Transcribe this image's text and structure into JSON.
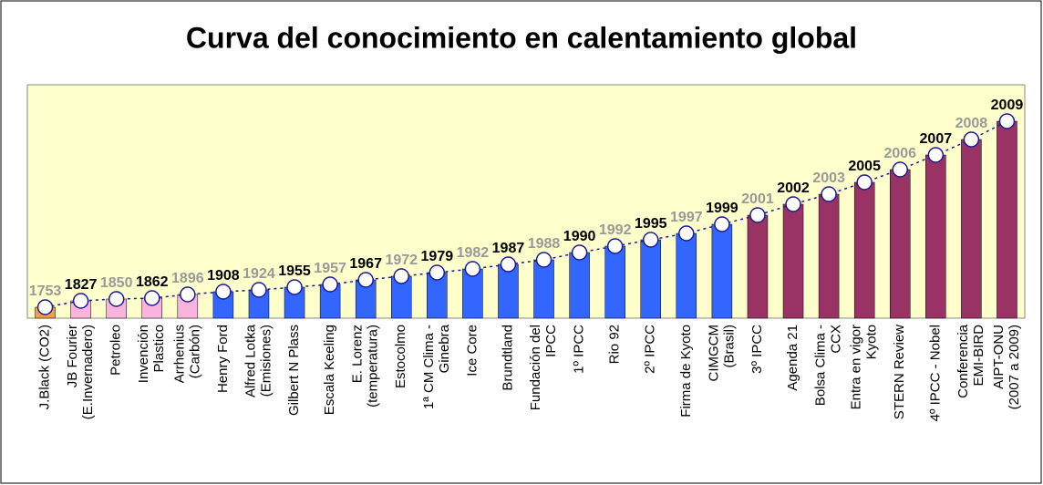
{
  "chart_data": {
    "type": "bar",
    "title": "Curva del conocimiento en calentamiento global",
    "categories": [
      [
        "J.Black (CO2)"
      ],
      [
        "JB Fourier",
        "(E.Invernadero)"
      ],
      [
        "Petroleo"
      ],
      [
        "Invención",
        "Plastico"
      ],
      [
        "Arrhenius",
        "(Carbón)"
      ],
      [
        "Henry Ford"
      ],
      [
        "Alfred Lotka",
        "(Emisiones)"
      ],
      [
        "Gilbert N Plass"
      ],
      [
        "Escala Keeling"
      ],
      [
        "E. Lorenz",
        "(temperatura)"
      ],
      [
        "Estocolmo"
      ],
      [
        "1ª CM Clima -",
        "Ginebra"
      ],
      [
        "Ice Core"
      ],
      [
        "Brundtland"
      ],
      [
        "Fundación del",
        "IPCC"
      ],
      [
        "1º IPCC"
      ],
      [
        "Rio 92"
      ],
      [
        "2º IPCC"
      ],
      [
        "Firma de Kyoto"
      ],
      [
        "CIMGCM",
        "(Brasil)"
      ],
      [
        "3º IPCC"
      ],
      [
        "Agenda 21"
      ],
      [
        "Bolsa Clima -",
        "CCX"
      ],
      [
        "Entra en vigor",
        "Kyoto"
      ],
      [
        "STERN Review"
      ],
      [
        "4º IPCC - Nobel"
      ],
      [
        "Conferencia",
        "EMI-BIRD"
      ],
      [
        "AIPT-ONU",
        "(2007 a 2009)"
      ]
    ],
    "years": [
      1753,
      1827,
      1850,
      1862,
      1896,
      1908,
      1924,
      1955,
      1957,
      1967,
      1972,
      1979,
      1982,
      1987,
      1988,
      1990,
      1992,
      1995,
      1997,
      1999,
      2001,
      2002,
      2003,
      2005,
      2006,
      2007,
      2008,
      2009
    ],
    "values": [
      12,
      19,
      21,
      22,
      26,
      29,
      31,
      34,
      37,
      42,
      46,
      50,
      54,
      59,
      64,
      72,
      79,
      86,
      93,
      103,
      113,
      125,
      136,
      149,
      163,
      179,
      196,
      216
    ],
    "colors": [
      "#f4a040",
      "#f9b3dd",
      "#f9b3dd",
      "#f9b3dd",
      "#f9b3dd",
      "#3366ff",
      "#3366ff",
      "#3366ff",
      "#3366ff",
      "#3366ff",
      "#3366ff",
      "#3366ff",
      "#3366ff",
      "#3366ff",
      "#3366ff",
      "#3366ff",
      "#3366ff",
      "#3366ff",
      "#3366ff",
      "#3366ff",
      "#993366",
      "#993366",
      "#993366",
      "#993366",
      "#993366",
      "#993366",
      "#993366",
      "#993366"
    ],
    "label_colors": [
      "#999999",
      "#000000"
    ],
    "ylim": [
      0,
      256
    ]
  }
}
